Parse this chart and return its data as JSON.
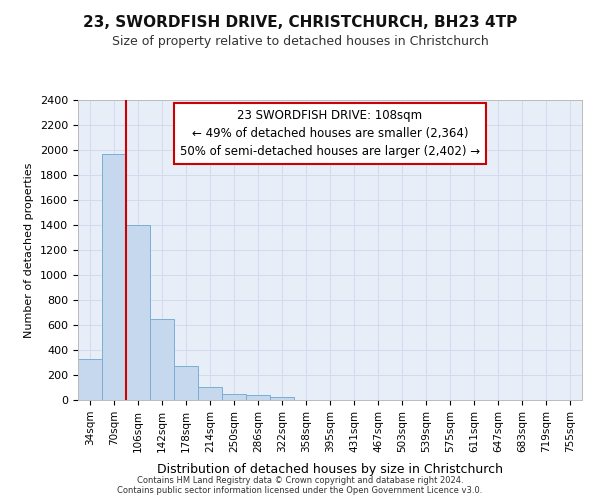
{
  "title": "23, SWORDFISH DRIVE, CHRISTCHURCH, BH23 4TP",
  "subtitle": "Size of property relative to detached houses in Christchurch",
  "xlabel": "Distribution of detached houses by size in Christchurch",
  "ylabel": "Number of detached properties",
  "footer_line1": "Contains HM Land Registry data © Crown copyright and database right 2024.",
  "footer_line2": "Contains public sector information licensed under the Open Government Licence v3.0.",
  "categories": [
    "34sqm",
    "70sqm",
    "106sqm",
    "142sqm",
    "178sqm",
    "214sqm",
    "250sqm",
    "286sqm",
    "322sqm",
    "358sqm",
    "395sqm",
    "431sqm",
    "467sqm",
    "503sqm",
    "539sqm",
    "575sqm",
    "611sqm",
    "647sqm",
    "683sqm",
    "719sqm",
    "755sqm"
  ],
  "bar_values": [
    325,
    1970,
    1400,
    650,
    270,
    105,
    50,
    40,
    25,
    0,
    0,
    0,
    0,
    0,
    0,
    0,
    0,
    0,
    0,
    0,
    0
  ],
  "bar_color": "#c5d8ee",
  "bar_edge_color": "#7aaed4",
  "ylim": [
    0,
    2400
  ],
  "yticks": [
    0,
    200,
    400,
    600,
    800,
    1000,
    1200,
    1400,
    1600,
    1800,
    2000,
    2200,
    2400
  ],
  "annotation_box_text_line1": "23 SWORDFISH DRIVE: 108sqm",
  "annotation_box_text_line2": "← 49% of detached houses are smaller (2,364)",
  "annotation_box_text_line3": "50% of semi-detached houses are larger (2,402) →",
  "red_line_x": 1.5,
  "red_line_color": "#cc0000",
  "annotation_box_color": "#ffffff",
  "annotation_box_edge_color": "#cc0000",
  "grid_color": "#d0dcee",
  "bg_color": "#e8eef8",
  "title_fontsize": 11,
  "subtitle_fontsize": 9
}
